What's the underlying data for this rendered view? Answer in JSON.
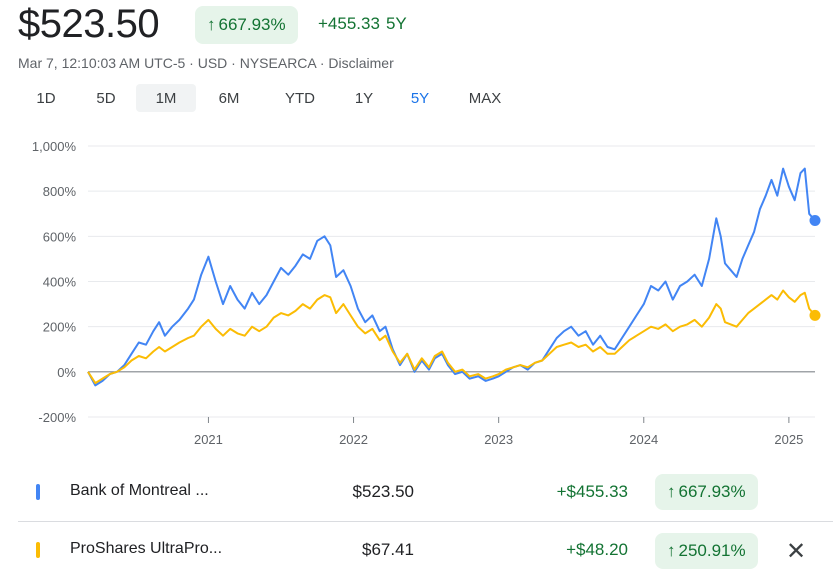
{
  "header": {
    "price": "$523.50",
    "percent_change": "667.93%",
    "abs_change": "+455.33",
    "period": "5Y",
    "meta": "Mar 7, 12:10:03 AM UTC-5 · USD · NYSEARCA · Disclaimer",
    "up_arrow": "↑"
  },
  "tabs": [
    "1D",
    "5D",
    "1M",
    "6M",
    "YTD",
    "1Y",
    "5Y",
    "MAX"
  ],
  "active_tab": "5Y",
  "hover_tab": "1M",
  "colors": {
    "blue": "#4285f4",
    "yellow": "#fbbc04",
    "green": "#137333",
    "badge_bg": "#e6f4ea"
  },
  "chart_data": {
    "type": "line",
    "y_ticks": [
      "1,000%",
      "800%",
      "600%",
      "400%",
      "200%",
      "0%",
      "-200%"
    ],
    "y_tick_values": [
      1000,
      800,
      600,
      400,
      200,
      0,
      -200
    ],
    "ylim": [
      -200,
      1000
    ],
    "x_ticks": [
      "2021",
      "2022",
      "2023",
      "2024",
      "2025"
    ],
    "x_tick_values": [
      2021,
      2022,
      2023,
      2024,
      2025
    ],
    "xlim": [
      2020.17,
      2025.18
    ],
    "grid": true,
    "series": [
      {
        "name": "Bank of Montreal ...",
        "color": "#4285f4",
        "points": [
          [
            2020.17,
            0
          ],
          [
            2020.22,
            -60
          ],
          [
            2020.27,
            -40
          ],
          [
            2020.32,
            -10
          ],
          [
            2020.37,
            0
          ],
          [
            2020.42,
            30
          ],
          [
            2020.47,
            80
          ],
          [
            2020.52,
            130
          ],
          [
            2020.57,
            120
          ],
          [
            2020.62,
            180
          ],
          [
            2020.66,
            220
          ],
          [
            2020.7,
            160
          ],
          [
            2020.75,
            200
          ],
          [
            2020.8,
            230
          ],
          [
            2020.86,
            280
          ],
          [
            2020.9,
            320
          ],
          [
            2020.95,
            430
          ],
          [
            2021.0,
            510
          ],
          [
            2021.05,
            400
          ],
          [
            2021.1,
            300
          ],
          [
            2021.15,
            380
          ],
          [
            2021.2,
            320
          ],
          [
            2021.25,
            280
          ],
          [
            2021.3,
            350
          ],
          [
            2021.35,
            300
          ],
          [
            2021.4,
            340
          ],
          [
            2021.45,
            400
          ],
          [
            2021.5,
            460
          ],
          [
            2021.55,
            430
          ],
          [
            2021.6,
            470
          ],
          [
            2021.65,
            520
          ],
          [
            2021.7,
            500
          ],
          [
            2021.75,
            580
          ],
          [
            2021.8,
            600
          ],
          [
            2021.84,
            560
          ],
          [
            2021.88,
            420
          ],
          [
            2021.93,
            450
          ],
          [
            2021.98,
            380
          ],
          [
            2022.03,
            280
          ],
          [
            2022.08,
            220
          ],
          [
            2022.13,
            250
          ],
          [
            2022.18,
            180
          ],
          [
            2022.22,
            200
          ],
          [
            2022.27,
            100
          ],
          [
            2022.32,
            30
          ],
          [
            2022.37,
            80
          ],
          [
            2022.42,
            0
          ],
          [
            2022.47,
            50
          ],
          [
            2022.52,
            10
          ],
          [
            2022.56,
            60
          ],
          [
            2022.61,
            80
          ],
          [
            2022.65,
            30
          ],
          [
            2022.7,
            -10
          ],
          [
            2022.75,
            0
          ],
          [
            2022.8,
            -30
          ],
          [
            2022.86,
            -20
          ],
          [
            2022.91,
            -40
          ],
          [
            2022.96,
            -30
          ],
          [
            2023.0,
            -20
          ],
          [
            2023.05,
            0
          ],
          [
            2023.1,
            20
          ],
          [
            2023.15,
            30
          ],
          [
            2023.2,
            10
          ],
          [
            2023.25,
            40
          ],
          [
            2023.3,
            50
          ],
          [
            2023.35,
            100
          ],
          [
            2023.4,
            150
          ],
          [
            2023.45,
            180
          ],
          [
            2023.5,
            200
          ],
          [
            2023.55,
            160
          ],
          [
            2023.6,
            180
          ],
          [
            2023.65,
            120
          ],
          [
            2023.7,
            160
          ],
          [
            2023.75,
            110
          ],
          [
            2023.8,
            100
          ],
          [
            2023.85,
            150
          ],
          [
            2023.9,
            200
          ],
          [
            2023.95,
            250
          ],
          [
            2024.0,
            300
          ],
          [
            2024.05,
            380
          ],
          [
            2024.1,
            360
          ],
          [
            2024.15,
            400
          ],
          [
            2024.2,
            320
          ],
          [
            2024.25,
            380
          ],
          [
            2024.3,
            400
          ],
          [
            2024.35,
            430
          ],
          [
            2024.4,
            380
          ],
          [
            2024.45,
            500
          ],
          [
            2024.5,
            680
          ],
          [
            2024.53,
            600
          ],
          [
            2024.56,
            480
          ],
          [
            2024.6,
            450
          ],
          [
            2024.64,
            420
          ],
          [
            2024.68,
            500
          ],
          [
            2024.72,
            560
          ],
          [
            2024.76,
            620
          ],
          [
            2024.8,
            720
          ],
          [
            2024.84,
            780
          ],
          [
            2024.88,
            850
          ],
          [
            2024.92,
            780
          ],
          [
            2024.96,
            900
          ],
          [
            2025.0,
            820
          ],
          [
            2025.04,
            760
          ],
          [
            2025.08,
            880
          ],
          [
            2025.11,
            900
          ],
          [
            2025.14,
            700
          ],
          [
            2025.18,
            670
          ]
        ]
      },
      {
        "name": "ProShares UltraPro...",
        "color": "#fbbc04",
        "points": [
          [
            2020.17,
            0
          ],
          [
            2020.22,
            -50
          ],
          [
            2020.27,
            -30
          ],
          [
            2020.32,
            -10
          ],
          [
            2020.37,
            0
          ],
          [
            2020.42,
            20
          ],
          [
            2020.47,
            50
          ],
          [
            2020.52,
            70
          ],
          [
            2020.57,
            60
          ],
          [
            2020.62,
            90
          ],
          [
            2020.66,
            110
          ],
          [
            2020.7,
            90
          ],
          [
            2020.75,
            110
          ],
          [
            2020.8,
            130
          ],
          [
            2020.86,
            150
          ],
          [
            2020.9,
            160
          ],
          [
            2020.95,
            200
          ],
          [
            2021.0,
            230
          ],
          [
            2021.05,
            190
          ],
          [
            2021.1,
            160
          ],
          [
            2021.15,
            190
          ],
          [
            2021.2,
            170
          ],
          [
            2021.25,
            160
          ],
          [
            2021.3,
            200
          ],
          [
            2021.35,
            180
          ],
          [
            2021.4,
            200
          ],
          [
            2021.45,
            240
          ],
          [
            2021.5,
            260
          ],
          [
            2021.55,
            250
          ],
          [
            2021.6,
            270
          ],
          [
            2021.65,
            300
          ],
          [
            2021.7,
            280
          ],
          [
            2021.75,
            320
          ],
          [
            2021.8,
            340
          ],
          [
            2021.84,
            330
          ],
          [
            2021.88,
            260
          ],
          [
            2021.93,
            300
          ],
          [
            2021.98,
            250
          ],
          [
            2022.03,
            200
          ],
          [
            2022.08,
            170
          ],
          [
            2022.13,
            190
          ],
          [
            2022.18,
            140
          ],
          [
            2022.22,
            160
          ],
          [
            2022.27,
            90
          ],
          [
            2022.32,
            40
          ],
          [
            2022.37,
            80
          ],
          [
            2022.42,
            10
          ],
          [
            2022.47,
            60
          ],
          [
            2022.52,
            20
          ],
          [
            2022.56,
            70
          ],
          [
            2022.61,
            90
          ],
          [
            2022.65,
            40
          ],
          [
            2022.7,
            0
          ],
          [
            2022.75,
            10
          ],
          [
            2022.8,
            -20
          ],
          [
            2022.86,
            -10
          ],
          [
            2022.91,
            -30
          ],
          [
            2022.96,
            -20
          ],
          [
            2023.0,
            -10
          ],
          [
            2023.05,
            10
          ],
          [
            2023.1,
            20
          ],
          [
            2023.15,
            30
          ],
          [
            2023.2,
            20
          ],
          [
            2023.25,
            40
          ],
          [
            2023.3,
            50
          ],
          [
            2023.35,
            80
          ],
          [
            2023.4,
            110
          ],
          [
            2023.45,
            120
          ],
          [
            2023.5,
            130
          ],
          [
            2023.55,
            110
          ],
          [
            2023.6,
            120
          ],
          [
            2023.65,
            90
          ],
          [
            2023.7,
            110
          ],
          [
            2023.75,
            80
          ],
          [
            2023.8,
            80
          ],
          [
            2023.85,
            110
          ],
          [
            2023.9,
            140
          ],
          [
            2023.95,
            160
          ],
          [
            2024.0,
            180
          ],
          [
            2024.05,
            200
          ],
          [
            2024.1,
            190
          ],
          [
            2024.15,
            210
          ],
          [
            2024.2,
            180
          ],
          [
            2024.25,
            200
          ],
          [
            2024.3,
            210
          ],
          [
            2024.35,
            230
          ],
          [
            2024.4,
            200
          ],
          [
            2024.45,
            240
          ],
          [
            2024.5,
            300
          ],
          [
            2024.53,
            280
          ],
          [
            2024.56,
            220
          ],
          [
            2024.6,
            210
          ],
          [
            2024.64,
            200
          ],
          [
            2024.68,
            230
          ],
          [
            2024.72,
            260
          ],
          [
            2024.76,
            280
          ],
          [
            2024.8,
            300
          ],
          [
            2024.84,
            320
          ],
          [
            2024.88,
            340
          ],
          [
            2024.92,
            320
          ],
          [
            2024.96,
            360
          ],
          [
            2025.0,
            330
          ],
          [
            2025.04,
            310
          ],
          [
            2025.08,
            340
          ],
          [
            2025.11,
            350
          ],
          [
            2025.14,
            280
          ],
          [
            2025.18,
            250
          ]
        ]
      }
    ]
  },
  "comparison": [
    {
      "name": "Bank of Montreal ...",
      "price": "$523.50",
      "change": "+$455.33",
      "percent": "667.93%",
      "color": "#4285f4",
      "removable": false
    },
    {
      "name": "ProShares UltraPro...",
      "price": "$67.41",
      "change": "+$48.20",
      "percent": "250.91%",
      "color": "#fbbc04",
      "removable": true
    }
  ],
  "close_icon": "✕"
}
